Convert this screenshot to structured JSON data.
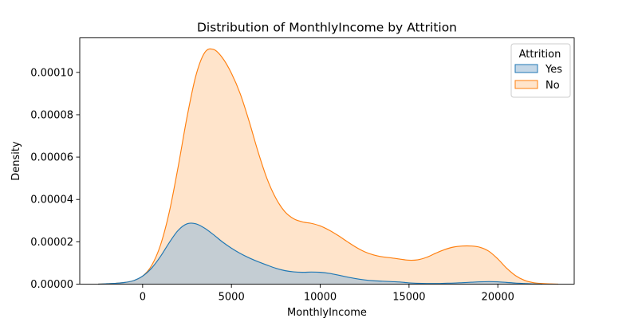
{
  "chart_data": {
    "type": "area",
    "kind": "kde",
    "title": "Distribution of MonthlyIncome by Attrition",
    "xlabel": "MonthlyIncome",
    "ylabel": "Density",
    "xlim": [
      -3540,
      24300
    ],
    "ylim": [
      0,
      0.0001163
    ],
    "xticks": [
      0,
      5000,
      10000,
      15000,
      20000
    ],
    "xtick_labels": [
      "0",
      "5000",
      "10000",
      "15000",
      "20000"
    ],
    "yticks": [
      0,
      2e-05,
      4e-05,
      6e-05,
      8e-05,
      0.0001
    ],
    "ytick_labels": [
      "0.00000",
      "0.00002",
      "0.00004",
      "0.00006",
      "0.00008",
      "0.00010"
    ],
    "grid": false,
    "legend": {
      "title": "Attrition",
      "position": "top-right"
    },
    "series": [
      {
        "name": "No",
        "color": "#ff7f0e",
        "fill": "#ffd3ab",
        "points": [
          [
            -2500,
            0
          ],
          [
            -2000,
            2e-07
          ],
          [
            -1500,
            4e-07
          ],
          [
            -1000,
            8e-07
          ],
          [
            -500,
            1.7e-06
          ],
          [
            0,
            3.8e-06
          ],
          [
            500,
            8.7e-06
          ],
          [
            1000,
            1.83e-05
          ],
          [
            1500,
            3.4e-05
          ],
          [
            2000,
            5.54e-05
          ],
          [
            2500,
            7.89e-05
          ],
          [
            3000,
            9.85e-05
          ],
          [
            3500,
            0.0001094
          ],
          [
            4000,
            0.0001108
          ],
          [
            4500,
            0.0001068
          ],
          [
            5000,
            9.96e-05
          ],
          [
            5500,
            8.98e-05
          ],
          [
            6000,
            7.68e-05
          ],
          [
            6500,
            6.25e-05
          ],
          [
            7000,
            4.99e-05
          ],
          [
            7500,
            4.06e-05
          ],
          [
            8000,
            3.43e-05
          ],
          [
            8500,
            3.09e-05
          ],
          [
            9000,
            2.94e-05
          ],
          [
            9500,
            2.87e-05
          ],
          [
            10000,
            2.75e-05
          ],
          [
            10500,
            2.55e-05
          ],
          [
            11000,
            2.3e-05
          ],
          [
            11500,
            2.02e-05
          ],
          [
            12000,
            1.75e-05
          ],
          [
            12500,
            1.53e-05
          ],
          [
            13000,
            1.38e-05
          ],
          [
            13500,
            1.29e-05
          ],
          [
            14000,
            1.24e-05
          ],
          [
            14500,
            1.18e-05
          ],
          [
            15000,
            1.13e-05
          ],
          [
            15500,
            1.15e-05
          ],
          [
            16000,
            1.27e-05
          ],
          [
            16500,
            1.46e-05
          ],
          [
            17000,
            1.63e-05
          ],
          [
            17500,
            1.75e-05
          ],
          [
            18000,
            1.8e-05
          ],
          [
            18500,
            1.8e-05
          ],
          [
            19000,
            1.74e-05
          ],
          [
            19500,
            1.55e-05
          ],
          [
            20000,
            1.19e-05
          ],
          [
            20500,
            7.5e-06
          ],
          [
            21000,
            4e-06
          ],
          [
            21500,
            1.8e-06
          ],
          [
            22000,
            7e-07
          ],
          [
            22500,
            3e-07
          ],
          [
            23000,
            1e-07
          ],
          [
            23400,
            0
          ]
        ]
      },
      {
        "name": "Yes",
        "color": "#1f77b4",
        "fill": "#9fbfd8",
        "points": [
          [
            -2500,
            0
          ],
          [
            -2000,
            2e-07
          ],
          [
            -1500,
            4e-07
          ],
          [
            -1000,
            8e-07
          ],
          [
            -500,
            1.7e-06
          ],
          [
            0,
            3.8e-06
          ],
          [
            500,
            7.5e-06
          ],
          [
            1000,
            1.3e-05
          ],
          [
            1500,
            1.96e-05
          ],
          [
            2000,
            2.54e-05
          ],
          [
            2500,
            2.85e-05
          ],
          [
            3000,
            2.85e-05
          ],
          [
            3500,
            2.64e-05
          ],
          [
            4000,
            2.33e-05
          ],
          [
            4500,
            1.99e-05
          ],
          [
            5000,
            1.7e-05
          ],
          [
            5500,
            1.45e-05
          ],
          [
            6000,
            1.24e-05
          ],
          [
            6500,
            1.06e-05
          ],
          [
            7000,
            9e-06
          ],
          [
            7500,
            7.5e-06
          ],
          [
            8000,
            6.4e-06
          ],
          [
            8500,
            5.8e-06
          ],
          [
            9000,
            5.6e-06
          ],
          [
            9500,
            5.7e-06
          ],
          [
            10000,
            5.6e-06
          ],
          [
            10500,
            5.1e-06
          ],
          [
            11000,
            4.3e-06
          ],
          [
            11500,
            3.4e-06
          ],
          [
            12000,
            2.6e-06
          ],
          [
            12500,
            2e-06
          ],
          [
            13000,
            1.6e-06
          ],
          [
            13500,
            1.4e-06
          ],
          [
            14000,
            1.2e-06
          ],
          [
            14500,
            1e-06
          ],
          [
            15000,
            6e-07
          ],
          [
            15500,
            4e-07
          ],
          [
            16000,
            3e-07
          ],
          [
            16500,
            3e-07
          ],
          [
            17000,
            4e-07
          ],
          [
            17500,
            5e-07
          ],
          [
            18000,
            7e-07
          ],
          [
            18500,
            9e-07
          ],
          [
            19000,
            1.1e-06
          ],
          [
            19500,
            1.2e-06
          ],
          [
            20000,
            1.1e-06
          ],
          [
            20500,
            8e-07
          ],
          [
            21000,
            5e-07
          ],
          [
            21500,
            3e-07
          ],
          [
            22000,
            1e-07
          ],
          [
            22500,
            0
          ]
        ]
      }
    ]
  }
}
